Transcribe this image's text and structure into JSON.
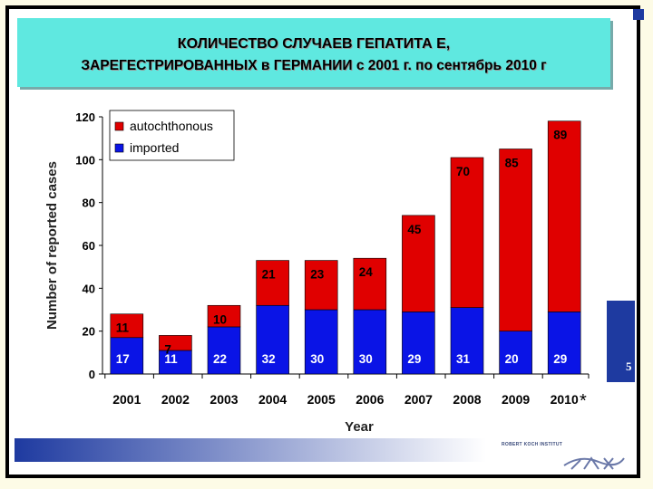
{
  "title": {
    "line1": "КОЛИЧЕСТВО  СЛУЧАЕВ  ГЕПАТИТА  Е,",
    "line2": "ЗАРЕГЕСТРИРОВАННЫХ в ГЕРМАНИИ с 2001 г. по сентябрь 2010 г"
  },
  "page_number": "5",
  "footer": {
    "logo_text": "ROBERT KOCH INSTITUT"
  },
  "colors": {
    "autochthonous": "#e00000",
    "imported": "#0a14e6",
    "title_bg": "#5fe8e0",
    "accent": "#1e3aa0"
  },
  "chart_data": {
    "type": "bar",
    "stacked": true,
    "categories": [
      "2001",
      "2002",
      "2003",
      "2004",
      "2005",
      "2006",
      "2007",
      "2008",
      "2009",
      "2010"
    ],
    "series": [
      {
        "name": "imported",
        "values": [
          17,
          11,
          22,
          32,
          30,
          30,
          29,
          31,
          20,
          29
        ]
      },
      {
        "name": "autochthonous",
        "values": [
          11,
          7,
          10,
          21,
          23,
          24,
          45,
          70,
          85,
          89
        ]
      }
    ],
    "xlabel": "Year",
    "ylabel": "Number of reported cases",
    "ylim": [
      0,
      120
    ],
    "yticks": [
      "0",
      "20",
      "40",
      "60",
      "80",
      "100",
      "120"
    ],
    "grid": false,
    "legend_position": "top-left",
    "annotation": "*"
  }
}
